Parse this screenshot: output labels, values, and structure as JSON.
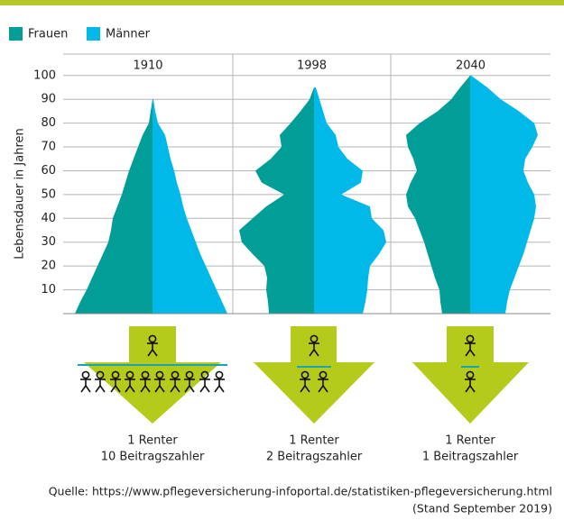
{
  "chart_data": {
    "type": "pyramid",
    "ylabel": "Lebensdauer in Jahren",
    "ylim": [
      0,
      109
    ],
    "yticks": [
      10,
      20,
      30,
      40,
      50,
      60,
      70,
      80,
      90,
      100
    ],
    "ages": [
      0,
      5,
      10,
      15,
      20,
      25,
      30,
      35,
      40,
      45,
      50,
      55,
      60,
      65,
      70,
      75,
      80,
      85,
      90,
      95,
      100
    ],
    "series": [
      {
        "name": "Frauen",
        "color": "#009e96"
      },
      {
        "name": "Männer",
        "color": "#00b9e8"
      }
    ],
    "panels": [
      {
        "title": "1910",
        "series": [
          {
            "values": [
              86,
              80,
              73,
              67,
              61,
              55,
              49,
              46,
              44,
              39,
              34,
              30,
              26,
              21,
              16,
              11,
              4,
              2,
              0,
              null,
              null
            ]
          },
          {
            "values": [
              83,
              77,
              71,
              65,
              59,
              53,
              48,
              43,
              38,
              34,
              31,
              27,
              24,
              20,
              17,
              14,
              6,
              3,
              1,
              null,
              null
            ]
          }
        ],
        "caption": [
          "1 Renter",
          "10 Beitragszahler"
        ]
      },
      {
        "title": "1998",
        "series": [
          {
            "values": [
              50,
              51,
              53,
              52,
              55,
              68,
              80,
              83,
              68,
              53,
              33,
              58,
              65,
              48,
              36,
              38,
              26,
              15,
              5,
              0,
              null
            ]
          },
          {
            "values": [
              54,
              57,
              59,
              60,
              62,
              72,
              80,
              77,
              64,
              62,
              30,
              52,
              54,
              37,
              27,
              24,
              14,
              10,
              6,
              2,
              null
            ]
          }
        ],
        "caption": [
          "1 Renter",
          "2 Beitragszahler"
        ]
      },
      {
        "title": "2040",
        "series": [
          {
            "values": [
              31,
              33,
              34,
              39,
              43,
              47,
              51,
              56,
              61,
              69,
              71,
              66,
              59,
              63,
              69,
              71,
              56,
              36,
              21,
              11,
              0
            ]
          },
          {
            "values": [
              39,
              41,
              44,
              49,
              54,
              59,
              63,
              67,
              71,
              73,
              71,
              64,
              59,
              61,
              69,
              75,
              71,
              54,
              34,
              19,
              1
            ]
          }
        ],
        "caption": [
          "1 Renter",
          "1 Beitragszahler"
        ]
      }
    ],
    "source": [
      "Quelle: https://www.pflegeversicherung-infoportal.de/statistiken-pflegeversicherung.html",
      "(Stand September 2019)"
    ]
  }
}
